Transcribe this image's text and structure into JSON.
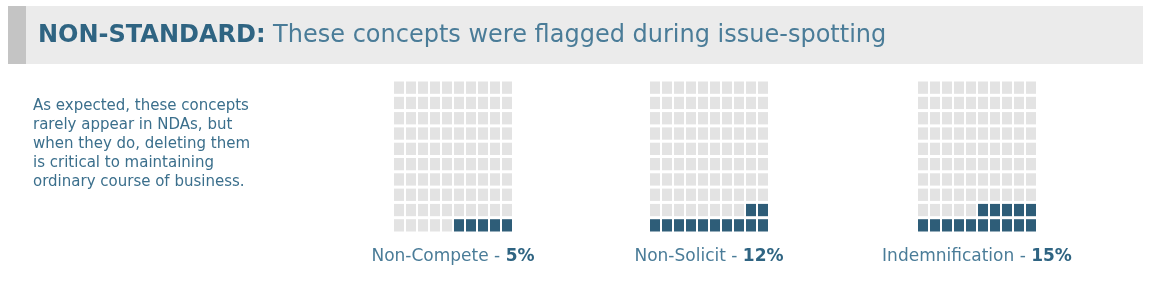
{
  "chart_data": {
    "type": "other",
    "title": "NON-STANDARD: These concepts were flagged during issue-spotting",
    "annotations": [
      "As expected, these concepts rarely appear in NDAs, but when they do, deleting them is critical to maintaining ordinary course of business."
    ],
    "categories": [
      "Non-Compete -",
      "Non-Solicit -",
      "Indemnification -"
    ],
    "values": [
      5,
      12,
      15
    ],
    "value_labels": [
      "5%",
      "12%",
      "15%"
    ],
    "color": "#2e5d78"
  }
}
